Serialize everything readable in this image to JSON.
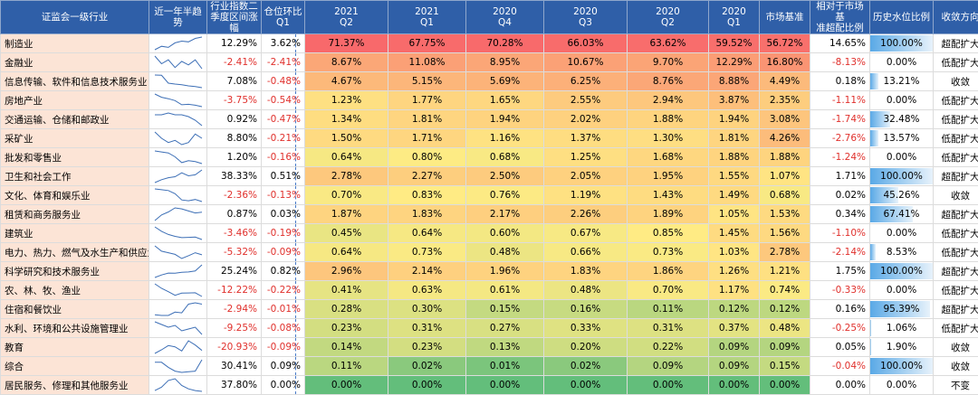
{
  "headers": {
    "industry": "证监会一级行业",
    "trend": "近一年半趋势",
    "q2_change": "行业指数二\n季度区间涨\n幅",
    "qoq": "仓位环比\nQ1",
    "q2021_2": "2021\nQ2",
    "q2021_1": "2021\nQ1",
    "q2020_4": "2020\nQ4",
    "q2020_3": "2020\nQ3",
    "q2020_2": "2020\nQ2",
    "q2020_1": "2020\nQ1",
    "benchmark": "市场基准",
    "over": "相对于市场基\n准超配比例",
    "hist": "历史水位比例",
    "direction": "收敛方向"
  },
  "colors": {
    "header_bg": "#2f5fa8",
    "industry_bg": "#fce4d6",
    "negative_text": "#e0302c",
    "heat_high": "#f8696b",
    "heat_mid": "#ffeb84",
    "heat_low": "#63be7b",
    "bar_color": "#5aa9e6"
  },
  "chart_data": {
    "type": "table",
    "rows": [
      {
        "industry": "制造业",
        "q2_change": "12.29%",
        "qoq": "3.62%",
        "q2021_2": "71.37%",
        "q2021_1": "67.75%",
        "q2020_4": "70.28%",
        "q2020_3": "66.03%",
        "q2020_2": "63.62%",
        "q2020_1": "59.52%",
        "benchmark": "56.72%",
        "over": "14.65%",
        "hist": "100.00%",
        "direction": "超配扩大",
        "trend": [
          35,
          45,
          42,
          55,
          60,
          58,
          68,
          72
        ]
      },
      {
        "industry": "金融业",
        "q2_change": "-2.41%",
        "qoq": "-2.41%",
        "q2021_2": "8.67%",
        "q2021_1": "11.08%",
        "q2020_4": "8.95%",
        "q2020_3": "10.67%",
        "q2020_2": "9.70%",
        "q2020_1": "12.29%",
        "benchmark": "16.80%",
        "over": "-8.13%",
        "hist": "0.00%",
        "direction": "低配扩大",
        "trend": [
          12,
          10,
          11,
          9,
          10.6,
          9.7,
          11,
          8.7
        ]
      },
      {
        "industry": "信息传输、软件和信息技术服务业",
        "q2_change": "7.08%",
        "qoq": "-0.48%",
        "q2021_2": "4.67%",
        "q2021_1": "5.15%",
        "q2020_4": "5.69%",
        "q2020_3": "6.25%",
        "q2020_2": "8.76%",
        "q2020_1": "8.88%",
        "benchmark": "4.49%",
        "over": "0.18%",
        "hist": "13.21%",
        "direction": "收敛",
        "trend": [
          8.9,
          8.8,
          6.2,
          5.9,
          5.7,
          5.3,
          5.1,
          4.7
        ]
      },
      {
        "industry": "房地产业",
        "q2_change": "-3.75%",
        "qoq": "-0.54%",
        "q2021_2": "1.23%",
        "q2021_1": "1.77%",
        "q2020_4": "1.65%",
        "q2020_3": "2.55%",
        "q2020_2": "2.94%",
        "q2020_1": "3.87%",
        "benchmark": "2.35%",
        "over": "-1.11%",
        "hist": "0.00%",
        "direction": "低配扩大",
        "trend": [
          3.9,
          3.2,
          2.9,
          2.5,
          1.6,
          1.7,
          1.5,
          1.2
        ]
      },
      {
        "industry": "交通运输、仓储和邮政业",
        "q2_change": "0.92%",
        "qoq": "-0.47%",
        "q2021_2": "1.34%",
        "q2021_1": "1.81%",
        "q2020_4": "1.94%",
        "q2020_3": "2.02%",
        "q2020_2": "1.88%",
        "q2020_1": "1.94%",
        "benchmark": "3.08%",
        "over": "-1.74%",
        "hist": "32.48%",
        "direction": "低配扩大",
        "trend": [
          1.9,
          1.9,
          2.0,
          1.9,
          1.9,
          1.8,
          1.6,
          1.3
        ]
      },
      {
        "industry": "采矿业",
        "q2_change": "8.80%",
        "qoq": "-0.21%",
        "q2021_2": "1.50%",
        "q2021_1": "1.71%",
        "q2020_4": "1.16%",
        "q2020_3": "1.37%",
        "q2020_2": "1.30%",
        "q2020_1": "1.81%",
        "benchmark": "4.26%",
        "over": "-2.76%",
        "hist": "13.57%",
        "direction": "低配扩大",
        "trend": [
          1.8,
          1.5,
          1.3,
          1.4,
          1.2,
          1.3,
          1.7,
          1.5
        ]
      },
      {
        "industry": "批发和零售业",
        "q2_change": "1.20%",
        "qoq": "-0.16%",
        "q2021_2": "0.64%",
        "q2021_1": "0.80%",
        "q2020_4": "0.68%",
        "q2020_3": "1.25%",
        "q2020_2": "1.68%",
        "q2020_1": "1.88%",
        "benchmark": "1.88%",
        "over": "-1.24%",
        "hist": "0.00%",
        "direction": "低配扩大",
        "trend": [
          1.9,
          1.8,
          1.7,
          1.3,
          0.7,
          0.9,
          0.8,
          0.6
        ]
      },
      {
        "industry": "卫生和社会工作",
        "q2_change": "38.33%",
        "qoq": "0.51%",
        "q2021_2": "2.78%",
        "q2021_1": "2.27%",
        "q2020_4": "2.50%",
        "q2020_3": "2.05%",
        "q2020_2": "1.95%",
        "q2020_1": "1.55%",
        "benchmark": "1.07%",
        "over": "1.71%",
        "hist": "100.00%",
        "direction": "超配扩大",
        "trend": [
          1.5,
          1.8,
          2.0,
          2.1,
          2.5,
          2.2,
          2.3,
          2.8
        ]
      },
      {
        "industry": "文化、体育和娱乐业",
        "q2_change": "-2.36%",
        "qoq": "-0.13%",
        "q2021_2": "0.70%",
        "q2021_1": "0.83%",
        "q2020_4": "0.76%",
        "q2020_3": "1.19%",
        "q2020_2": "1.43%",
        "q2020_1": "1.49%",
        "benchmark": "0.68%",
        "over": "0.02%",
        "hist": "45.26%",
        "direction": "收敛",
        "trend": [
          1.5,
          1.45,
          1.4,
          1.2,
          0.8,
          0.75,
          0.83,
          0.7
        ]
      },
      {
        "industry": "租赁和商务服务业",
        "q2_change": "0.87%",
        "qoq": "0.03%",
        "q2021_2": "1.87%",
        "q2021_1": "1.83%",
        "q2020_4": "2.17%",
        "q2020_3": "2.26%",
        "q2020_2": "1.89%",
        "q2020_1": "1.05%",
        "benchmark": "1.53%",
        "over": "0.34%",
        "hist": "67.41%",
        "direction": "超配扩大",
        "trend": [
          1.05,
          1.6,
          1.9,
          2.3,
          2.2,
          2.0,
          1.8,
          1.87
        ]
      },
      {
        "industry": "建筑业",
        "q2_change": "-3.46%",
        "qoq": "-0.19%",
        "q2021_2": "0.45%",
        "q2021_1": "0.64%",
        "q2020_4": "0.60%",
        "q2020_3": "0.67%",
        "q2020_2": "0.85%",
        "q2020_1": "1.45%",
        "benchmark": "1.56%",
        "over": "-1.10%",
        "hist": "0.00%",
        "direction": "低配扩大",
        "trend": [
          1.45,
          1.1,
          0.85,
          0.7,
          0.6,
          0.62,
          0.64,
          0.45
        ]
      },
      {
        "industry": "电力、热力、燃气及水生产和供应业",
        "q2_change": "-5.32%",
        "qoq": "-0.09%",
        "q2021_2": "0.64%",
        "q2021_1": "0.73%",
        "q2020_4": "0.48%",
        "q2020_3": "0.66%",
        "q2020_2": "0.73%",
        "q2020_1": "1.03%",
        "benchmark": "2.78%",
        "over": "-2.14%",
        "hist": "8.53%",
        "direction": "低配扩大",
        "trend": [
          1.03,
          0.8,
          0.73,
          0.66,
          0.48,
          0.6,
          0.73,
          0.64
        ]
      },
      {
        "industry": "科学研究和技术服务业",
        "q2_change": "25.24%",
        "qoq": "0.82%",
        "q2021_2": "2.96%",
        "q2021_1": "2.14%",
        "q2020_4": "1.96%",
        "q2020_3": "1.83%",
        "q2020_2": "1.86%",
        "q2020_1": "1.26%",
        "benchmark": "1.21%",
        "over": "1.75%",
        "hist": "100.00%",
        "direction": "超配扩大",
        "trend": [
          1.26,
          1.6,
          1.86,
          1.83,
          1.96,
          2.0,
          2.14,
          2.96
        ]
      },
      {
        "industry": "农、林、牧、渔业",
        "q2_change": "-12.22%",
        "qoq": "-0.22%",
        "q2021_2": "0.41%",
        "q2021_1": "0.63%",
        "q2020_4": "0.61%",
        "q2020_3": "0.48%",
        "q2020_2": "0.70%",
        "q2020_1": "1.17%",
        "benchmark": "0.74%",
        "over": "-0.33%",
        "hist": "0.00%",
        "direction": "低配扩大",
        "trend": [
          1.17,
          0.9,
          0.7,
          0.48,
          0.61,
          0.62,
          0.63,
          0.41
        ]
      },
      {
        "industry": "住宿和餐饮业",
        "q2_change": "-2.94%",
        "qoq": "-0.01%",
        "q2021_2": "0.28%",
        "q2021_1": "0.30%",
        "q2020_4": "0.15%",
        "q2020_3": "0.16%",
        "q2020_2": "0.11%",
        "q2020_1": "0.12%",
        "benchmark": "0.12%",
        "over": "0.16%",
        "hist": "95.39%",
        "direction": "超配扩大",
        "trend": [
          0.12,
          0.11,
          0.11,
          0.16,
          0.15,
          0.28,
          0.3,
          0.28
        ]
      },
      {
        "industry": "水利、环境和公共设施管理业",
        "q2_change": "-9.25%",
        "qoq": "-0.08%",
        "q2021_2": "0.23%",
        "q2021_1": "0.31%",
        "q2020_4": "0.27%",
        "q2020_3": "0.33%",
        "q2020_2": "0.31%",
        "q2020_1": "0.37%",
        "benchmark": "0.48%",
        "over": "-0.25%",
        "hist": "1.06%",
        "direction": "低配扩大",
        "trend": [
          0.37,
          0.34,
          0.31,
          0.33,
          0.27,
          0.29,
          0.31,
          0.23
        ]
      },
      {
        "industry": "教育",
        "q2_change": "-20.93%",
        "qoq": "-0.09%",
        "q2021_2": "0.14%",
        "q2021_1": "0.23%",
        "q2020_4": "0.13%",
        "q2020_3": "0.20%",
        "q2020_2": "0.22%",
        "q2020_1": "0.09%",
        "benchmark": "0.09%",
        "over": "0.05%",
        "hist": "1.90%",
        "direction": "收敛",
        "trend": [
          0.09,
          0.15,
          0.22,
          0.2,
          0.13,
          0.3,
          0.23,
          0.14
        ]
      },
      {
        "industry": "综合",
        "q2_change": "30.41%",
        "qoq": "0.09%",
        "q2021_2": "0.11%",
        "q2021_1": "0.02%",
        "q2020_4": "0.01%",
        "q2020_3": "0.02%",
        "q2020_2": "0.09%",
        "q2020_1": "0.09%",
        "benchmark": "0.15%",
        "over": "-0.04%",
        "hist": "100.00%",
        "direction": "收敛",
        "trend": [
          0.09,
          0.09,
          0.05,
          0.02,
          0.01,
          0.015,
          0.02,
          0.11
        ]
      },
      {
        "industry": "居民服务、修理和其他服务业",
        "q2_change": "37.80%",
        "qoq": "0.00%",
        "q2021_2": "0.00%",
        "q2021_1": "0.00%",
        "q2020_4": "0.00%",
        "q2020_3": "0.00%",
        "q2020_2": "0.00%",
        "q2020_1": "0.00%",
        "benchmark": "0.00%",
        "over": "0.00%",
        "hist": "0.00%",
        "direction": "不变",
        "trend": [
          0.2,
          0.4,
          0.8,
          0.9,
          0.5,
          0.3,
          0.2,
          0.15
        ]
      }
    ]
  }
}
